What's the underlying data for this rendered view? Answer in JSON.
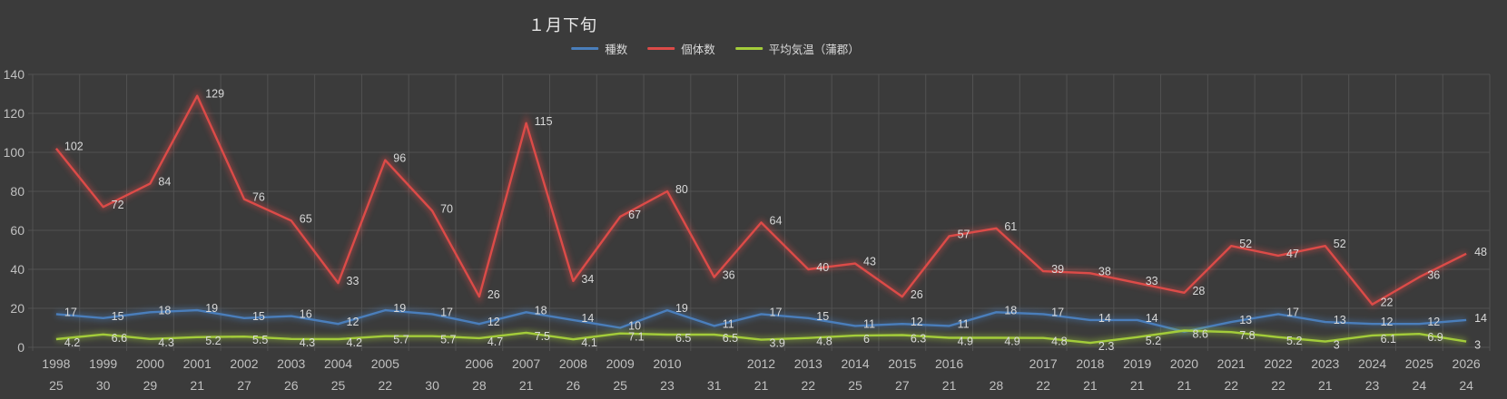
{
  "title": "１月下旬",
  "legend": [
    {
      "label": "種数",
      "color": "#4A7EBB"
    },
    {
      "label": "個体数",
      "color": "#DC4B48"
    },
    {
      "label": "平均気温（蒲郡）",
      "color": "#A3CC3A"
    }
  ],
  "chart_data": {
    "type": "line",
    "title": "１月下旬",
    "ylim": [
      0,
      140
    ],
    "y_ticks": [
      0,
      20,
      40,
      60,
      80,
      100,
      120,
      140
    ],
    "grid": true,
    "legend_position": "top",
    "x_year_labels": [
      "1998",
      "1999",
      "2000",
      "2001",
      "2002",
      "2003",
      "2004",
      "2005",
      "",
      "2006",
      "2007",
      "2008",
      "2009",
      "2010",
      "",
      "2012",
      "2013",
      "2014",
      "2015",
      "2016",
      "",
      "2017",
      "2018",
      "2019",
      "2020",
      "2021",
      "2022",
      "2023",
      "2024",
      "2025",
      "2026"
    ],
    "x_day_labels": [
      "25",
      "30",
      "29",
      "21",
      "27",
      "26",
      "25",
      "22",
      "30",
      "28",
      "21",
      "26",
      "25",
      "23",
      "31",
      "21",
      "22",
      "25",
      "27",
      "21",
      "28",
      "22",
      "21",
      "21",
      "21",
      "22",
      "22",
      "21",
      "23",
      "24",
      "24"
    ],
    "series": [
      {
        "name": "種数",
        "color": "#4A7EBB",
        "values": [
          17,
          15,
          18,
          19,
          15,
          16,
          12,
          19,
          17,
          12,
          18,
          14,
          10,
          19,
          11,
          17,
          15,
          11,
          12,
          11,
          18,
          17,
          14,
          14,
          8,
          13,
          17,
          13,
          12,
          12,
          14
        ],
        "labels": [
          "17",
          "15",
          "18",
          "19",
          "15",
          "16",
          "12",
          "19",
          "17",
          "12",
          "18",
          "14",
          "10",
          "19",
          "11",
          "17",
          "15",
          "11",
          "12",
          "11",
          "18",
          "17",
          "14",
          "14",
          "",
          "13",
          "17",
          "13",
          "12",
          "12",
          "14"
        ]
      },
      {
        "name": "個体数",
        "color": "#DC4B48",
        "values": [
          102,
          72,
          84,
          129,
          76,
          65,
          33,
          96,
          70,
          26,
          115,
          34,
          67,
          80,
          36,
          64,
          40,
          43,
          26,
          57,
          61,
          39,
          38,
          33,
          28,
          52,
          47,
          52,
          22,
          36,
          48
        ],
        "labels": [
          "102",
          "72",
          "84",
          "129",
          "76",
          "65",
          "33",
          "96",
          "70",
          "26",
          "115",
          "34",
          "67",
          "80",
          "36",
          "64",
          "40",
          "43",
          "26",
          "57",
          "61",
          "39",
          "38",
          "33",
          "28",
          "52",
          "47",
          "52",
          "22",
          "36",
          "48"
        ]
      },
      {
        "name": "平均気温（蒲郡）",
        "color": "#A3CC3A",
        "values": [
          4.2,
          6.6,
          4.3,
          5.2,
          5.5,
          4.3,
          4.2,
          5.7,
          5.7,
          4.7,
          7.5,
          4.1,
          7.1,
          6.5,
          6.5,
          3.9,
          4.8,
          6,
          6.3,
          4.9,
          4.9,
          4.8,
          2.3,
          5.2,
          8.6,
          7.8,
          5.2,
          3,
          6.1,
          6.9,
          3
        ],
        "labels": [
          "4.2",
          "6.6",
          "4.3",
          "5.2",
          "5.5",
          "4.3",
          "4.2",
          "5.7",
          "5.7",
          "4.7",
          "7.5",
          "4.1",
          "7.1",
          "6.5",
          "6.5",
          "3.9",
          "4.8",
          "6",
          "6.3",
          "4.9",
          "4.9",
          "4.8",
          "2.3",
          "5.2",
          "8.6",
          "7.8",
          "5.2",
          "3",
          "6.1",
          "6.9",
          "3"
        ]
      }
    ],
    "colors": {
      "background": "#3B3B3B",
      "gridline": "#525252",
      "axis_text": "#C0C0C0",
      "data_label": "#D9D9D9"
    }
  }
}
